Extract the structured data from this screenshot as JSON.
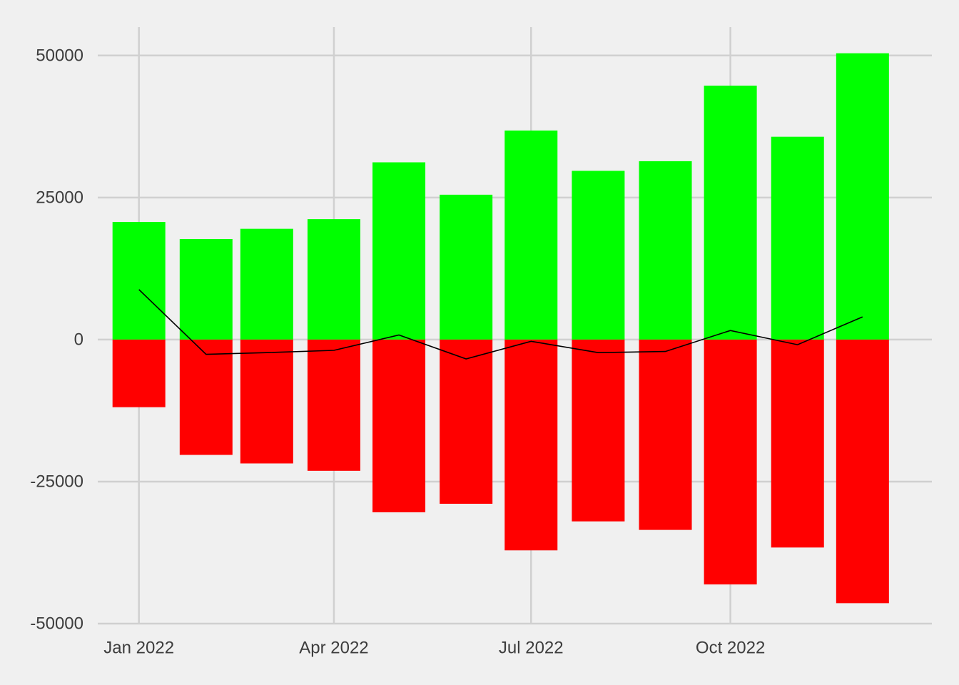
{
  "chart_data": {
    "type": "bar",
    "x_type": "date",
    "x": [
      "2022-01-01",
      "2022-02-01",
      "2022-03-01",
      "2022-04-01",
      "2022-05-01",
      "2022-06-01",
      "2022-07-01",
      "2022-08-01",
      "2022-09-01",
      "2022-10-01",
      "2022-11-01",
      "2022-12-01"
    ],
    "series": [
      {
        "type": "bar",
        "color": "#00ff00",
        "values": [
          20700,
          17700,
          19500,
          21200,
          31200,
          25500,
          36800,
          29700,
          31400,
          44700,
          35700,
          50400
        ]
      },
      {
        "type": "bar",
        "color": "#ff0000",
        "values": [
          -11900,
          -20300,
          -21800,
          -23100,
          -30400,
          -28900,
          -37100,
          -32000,
          -33500,
          -43100,
          -36600,
          -46400
        ]
      },
      {
        "type": "line",
        "color": "#000000",
        "values": [
          8800,
          -2600,
          -2300,
          -1900,
          800,
          -3400,
          -300,
          -2300,
          -2100,
          1600,
          -900,
          4000
        ]
      }
    ],
    "x_ticks": [
      {
        "date": "2022-01-01",
        "label": "Jan 2022"
      },
      {
        "date": "2022-04-01",
        "label": "Apr 2022"
      },
      {
        "date": "2022-07-01",
        "label": "Jul 2022"
      },
      {
        "date": "2022-10-01",
        "label": "Oct 2022"
      }
    ],
    "y_ticks": [
      {
        "value": 50000,
        "label": "50000"
      },
      {
        "value": 25000,
        "label": "25000"
      },
      {
        "value": 0,
        "label": "0"
      },
      {
        "value": -25000,
        "label": "-25000"
      },
      {
        "value": -50000,
        "label": "-50000"
      }
    ],
    "xlim": [
      "2021-12-13",
      "2023-01-02"
    ],
    "ylim": [
      -50000,
      55000
    ],
    "grid": true,
    "legend": "none",
    "title": "",
    "xlabel": "",
    "ylabel": ""
  }
}
